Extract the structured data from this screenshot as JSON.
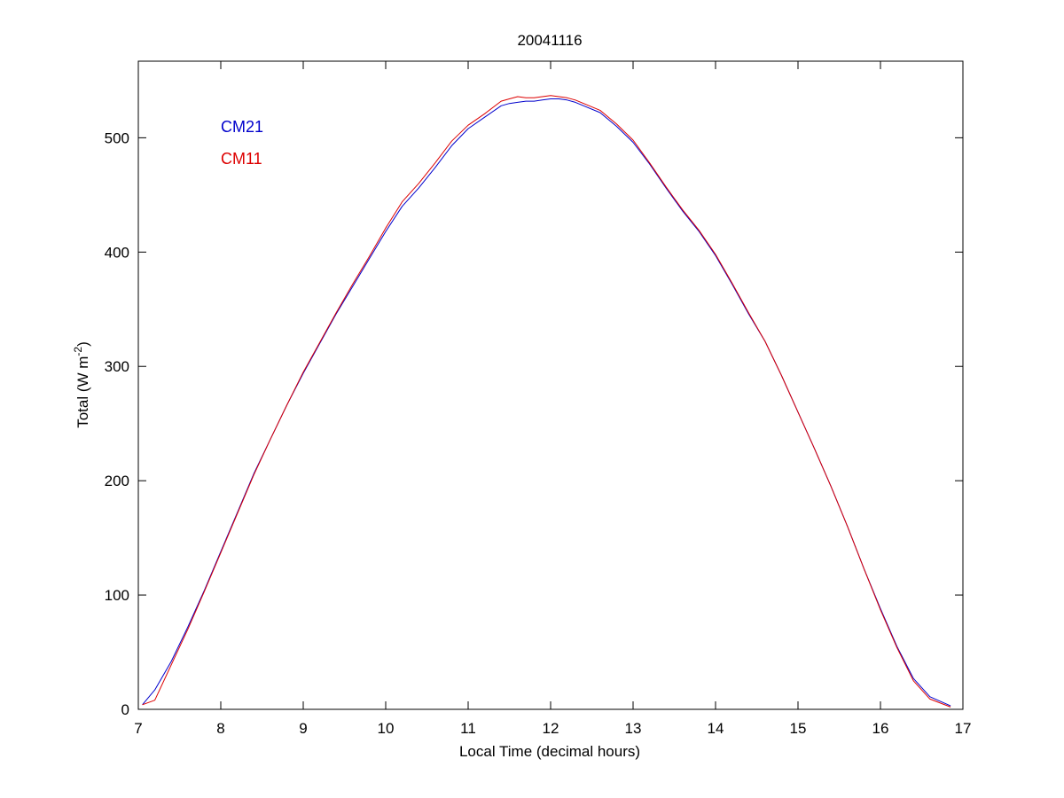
{
  "chart_data": {
    "type": "line",
    "title": "20041116",
    "xlabel": "Local Time (decimal hours)",
    "ylabel": {
      "main": "Total (W m",
      "sup": "-2",
      "close": ")"
    },
    "xlim": [
      7,
      17
    ],
    "ylim": [
      0,
      567
    ],
    "xticks": [
      "7",
      "8",
      "9",
      "10",
      "11",
      "12",
      "13",
      "14",
      "15",
      "16",
      "17"
    ],
    "yticks": [
      "0",
      "100",
      "200",
      "300",
      "400",
      "500"
    ],
    "grid": false,
    "legend_position": "top-left",
    "series": [
      {
        "name": "CM21",
        "color": "#0000cc",
        "x": [
          7.05,
          7.2,
          7.4,
          7.6,
          7.8,
          8.0,
          8.2,
          8.4,
          8.6,
          8.8,
          9.0,
          9.2,
          9.4,
          9.6,
          9.8,
          10.0,
          10.2,
          10.4,
          10.6,
          10.8,
          11.0,
          11.2,
          11.4,
          11.5,
          11.6,
          11.7,
          11.8,
          11.9,
          12.0,
          12.1,
          12.2,
          12.3,
          12.4,
          12.6,
          12.8,
          13.0,
          13.2,
          13.4,
          13.6,
          13.8,
          14.0,
          14.2,
          14.4,
          14.6,
          14.8,
          15.0,
          15.2,
          15.4,
          15.6,
          15.8,
          16.0,
          16.2,
          16.4,
          16.6,
          16.85
        ],
        "y": [
          4,
          17,
          42,
          72,
          104,
          138,
          172,
          206,
          236,
          266,
          294,
          320,
          346,
          370,
          394,
          418,
          440,
          456,
          474,
          493,
          508,
          518,
          528,
          530,
          531,
          532,
          532,
          533,
          534,
          534,
          533,
          531,
          528,
          522,
          510,
          496,
          477,
          456,
          436,
          418,
          397,
          372,
          346,
          322,
          292,
          260,
          228,
          195,
          160,
          123,
          88,
          55,
          27,
          11,
          3
        ]
      },
      {
        "name": "CM11",
        "color": "#dd0000",
        "x": [
          7.05,
          7.2,
          7.4,
          7.6,
          7.8,
          8.0,
          8.2,
          8.4,
          8.6,
          8.8,
          9.0,
          9.2,
          9.4,
          9.6,
          9.8,
          10.0,
          10.2,
          10.4,
          10.6,
          10.8,
          11.0,
          11.2,
          11.4,
          11.5,
          11.6,
          11.7,
          11.8,
          11.9,
          12.0,
          12.1,
          12.2,
          12.3,
          12.4,
          12.6,
          12.8,
          13.0,
          13.2,
          13.4,
          13.6,
          13.8,
          14.0,
          14.2,
          14.4,
          14.6,
          14.8,
          15.0,
          15.2,
          15.4,
          15.6,
          15.8,
          16.0,
          16.2,
          16.4,
          16.6,
          16.85
        ],
        "y": [
          4,
          8,
          39,
          70,
          103,
          137,
          171,
          205,
          236,
          266,
          295,
          321,
          347,
          372,
          396,
          421,
          444,
          460,
          478,
          497,
          511,
          521,
          532,
          534,
          536,
          535,
          535,
          536,
          537,
          536,
          535,
          533,
          530,
          524,
          512,
          498,
          478,
          457,
          437,
          419,
          398,
          373,
          347,
          322,
          292,
          260,
          228,
          195,
          160,
          123,
          87,
          54,
          25,
          9,
          2
        ]
      }
    ]
  }
}
